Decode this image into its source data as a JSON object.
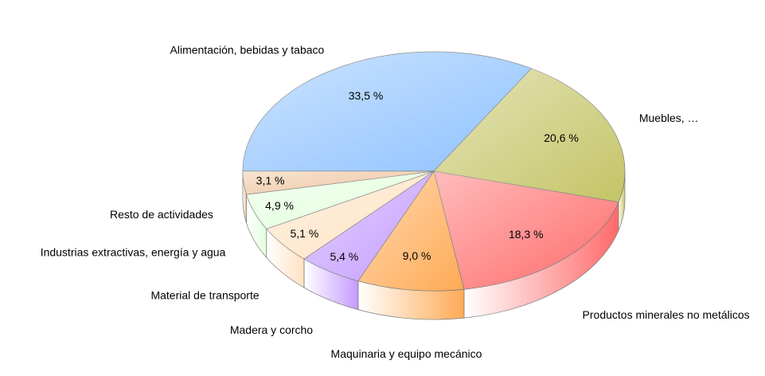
{
  "chart_data": {
    "type": "pie3d",
    "categories": [
      "Alimentación, bebidas y tabaco",
      "Muebles, …",
      "Productos minerales no metálicos",
      "Maquinaria y equipo mecánico",
      "Madera y corcho",
      "Material de transporte",
      "Industrias extractivas, energía y agua",
      "Resto de actividades"
    ],
    "values": [
      33.5,
      20.6,
      18.3,
      9.0,
      5.4,
      5.1,
      4.9,
      3.1
    ],
    "value_labels": [
      "33,5 %",
      "20,6 %",
      "18,3 %",
      "9,0 %",
      "5,4 %",
      "5,1 %",
      "4,9 %",
      "3,1 %"
    ],
    "colors": [
      "#8ec2ff",
      "#c4c466",
      "#ff6a6a",
      "#ffaa55",
      "#c49cff",
      "#ffe2c2",
      "#e2ffdc",
      "#eec39c"
    ]
  }
}
